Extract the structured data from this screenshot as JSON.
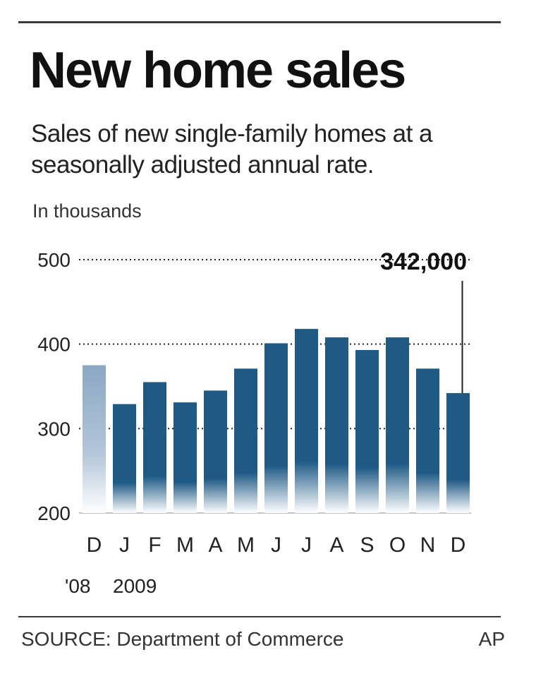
{
  "header": {
    "title": "New home sales",
    "subtitle": "Sales of new single-family homes at a seasonally adjusted annual rate.",
    "units": "In thousands"
  },
  "footer": {
    "source": "SOURCE: Department of Commerce",
    "credit": "AP"
  },
  "colors": {
    "bar": "#1f5a85",
    "bar_prior_year": "#8ba7c4",
    "rule": "#3a3a3a"
  },
  "chart_data": {
    "type": "bar",
    "categories": [
      "D",
      "J",
      "F",
      "M",
      "A",
      "M",
      "J",
      "J",
      "A",
      "S",
      "O",
      "N",
      "D"
    ],
    "year_labels": [
      "'08",
      "2009"
    ],
    "values": [
      375,
      329,
      355,
      331,
      345,
      371,
      401,
      418,
      408,
      393,
      408,
      371,
      342
    ],
    "ylim": [
      200,
      500
    ],
    "yticks": [
      200,
      300,
      400,
      500
    ],
    "grid": "dotted lines at 400 and 500",
    "annotation": {
      "text": "342,000",
      "category_index": 12
    },
    "highlight_first_bar_lighter": true
  }
}
